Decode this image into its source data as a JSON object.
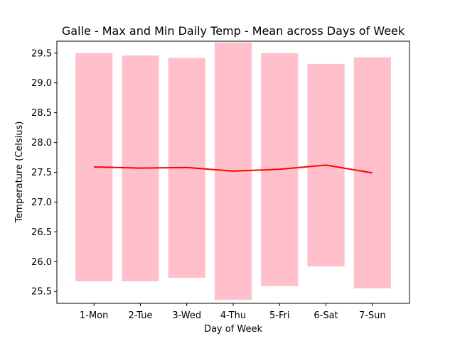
{
  "chart_data": {
    "type": "bar",
    "title": "Galle - Max and Min Daily Temp - Mean across Days of Week",
    "xlabel": "Day of Week",
    "ylabel": "Temperature (Celsius)",
    "categories": [
      "1-Mon",
      "2-Tue",
      "3-Wed",
      "4-Thu",
      "5-Fri",
      "6-Sat",
      "7-Sun"
    ],
    "ylim": [
      25.3,
      29.7
    ],
    "yticks": [
      25.5,
      26.0,
      26.5,
      27.0,
      27.5,
      28.0,
      28.5,
      29.0,
      29.5
    ],
    "ytick_labels": [
      "25.5",
      "26.0",
      "26.5",
      "27.0",
      "27.5",
      "28.0",
      "28.5",
      "29.0",
      "29.5"
    ],
    "grid": false,
    "series": [
      {
        "type": "floating-bar",
        "color": "#ffc0cb",
        "min": [
          25.67,
          25.67,
          25.73,
          25.36,
          25.59,
          25.92,
          25.55
        ],
        "max": [
          29.5,
          29.46,
          29.42,
          29.68,
          29.5,
          29.32,
          29.43
        ]
      },
      {
        "type": "line",
        "color": "#ff0000",
        "values": [
          27.59,
          27.57,
          27.58,
          27.52,
          27.55,
          27.62,
          27.49
        ]
      }
    ]
  }
}
